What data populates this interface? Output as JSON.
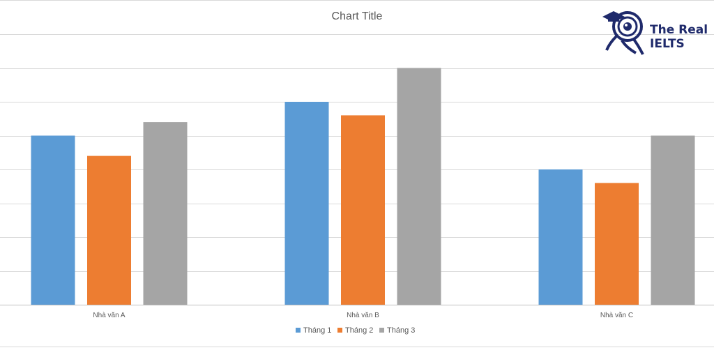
{
  "chart_data": {
    "type": "bar",
    "title": "Chart Title",
    "categories": [
      "Nhà văn A",
      "Nhà văn B",
      "Nhà văn C"
    ],
    "series": [
      {
        "name": "Tháng 1",
        "color": "#5b9bd5",
        "values": [
          25,
          30,
          20
        ]
      },
      {
        "name": "Tháng 2",
        "color": "#ed7d31",
        "values": [
          22,
          28,
          18
        ]
      },
      {
        "name": "Tháng 3",
        "color": "#a5a5a5",
        "values": [
          27,
          35,
          25
        ]
      }
    ],
    "xlabel": "",
    "ylabel": "",
    "ylim": [
      0,
      40
    ],
    "grid": true,
    "legend": "bottom"
  },
  "logo": {
    "line1": "The Real",
    "line2": "IELTS",
    "icon": "owl-graduate-icon",
    "color": "#1f2a6b"
  }
}
